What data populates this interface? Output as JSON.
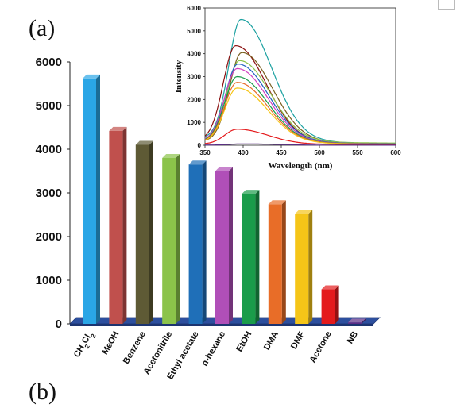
{
  "labels": {
    "panel_a": "(a)",
    "panel_b": "(b)"
  },
  "chart_data": [
    {
      "type": "bar",
      "style": "3d",
      "categories": [
        "CH2Cl2",
        "MeOH",
        "Benzene",
        "Acetonitrile",
        "Ethyl acetate",
        "n-hexane",
        "EtOH",
        "DMA",
        "DMF",
        "Acetone",
        "NB"
      ],
      "values": [
        5620,
        4420,
        4100,
        3800,
        3650,
        3500,
        2980,
        2740,
        2520,
        790,
        30
      ],
      "colors": [
        "#2aa6e6",
        "#c0504d",
        "#5e5a35",
        "#8bc34a",
        "#1f6fb8",
        "#b04fb8",
        "#1a9c4a",
        "#e86d28",
        "#f5c518",
        "#e41a1c",
        "#5b2d86"
      ],
      "floor_color": "#2d4f9e",
      "ylim": [
        0,
        6000
      ],
      "yticks": [
        0,
        1000,
        2000,
        3000,
        4000,
        5000,
        6000
      ],
      "xlabel": "",
      "ylabel": "",
      "title": "",
      "grid": false
    },
    {
      "type": "line",
      "xlabel": "Wavelength (nm)",
      "ylabel": "Intensity",
      "xlim": [
        350,
        600
      ],
      "ylim": [
        0,
        6000
      ],
      "xticks": [
        350,
        400,
        450,
        500,
        550,
        600
      ],
      "yticks": [
        0,
        1000,
        2000,
        3000,
        4000,
        5000,
        6000
      ],
      "grid": false,
      "series": [
        {
          "color": "#1aa0a0",
          "peak_x": 397,
          "peak_y": 5500,
          "values_at_xticks": [
            350,
            5300,
            1500,
            450,
            160,
            60
          ]
        },
        {
          "color": "#8b1010",
          "peak_x": 390,
          "peak_y": 4350,
          "values_at_xticks": [
            250,
            4150,
            1150,
            350,
            120,
            50
          ]
        },
        {
          "color": "#7a6020",
          "peak_x": 398,
          "peak_y": 4050,
          "values_at_xticks": [
            200,
            3950,
            1300,
            420,
            140,
            55
          ]
        },
        {
          "color": "#8bc34a",
          "peak_x": 395,
          "peak_y": 3700,
          "values_at_xticks": [
            230,
            3650,
            1800,
            650,
            220,
            90
          ]
        },
        {
          "color": "#2060c0",
          "peak_x": 393,
          "peak_y": 3550,
          "values_at_xticks": [
            220,
            3500,
            1350,
            450,
            150,
            60
          ]
        },
        {
          "color": "#d040c0",
          "peak_x": 392,
          "peak_y": 3350,
          "values_at_xticks": [
            210,
            3300,
            1250,
            420,
            140,
            55
          ]
        },
        {
          "color": "#1a9c4a",
          "peak_x": 392,
          "peak_y": 3000,
          "values_at_xticks": [
            190,
            2950,
            1150,
            380,
            130,
            50
          ]
        },
        {
          "color": "#e86d28",
          "peak_x": 392,
          "peak_y": 2750,
          "values_at_xticks": [
            170,
            2700,
            1050,
            350,
            120,
            45
          ]
        },
        {
          "color": "#f5c518",
          "peak_x": 392,
          "peak_y": 2500,
          "values_at_xticks": [
            160,
            2450,
            950,
            320,
            110,
            40
          ]
        },
        {
          "color": "#e41a1c",
          "peak_x": 392,
          "peak_y": 700,
          "values_at_xticks": [
            60,
            690,
            400,
            200,
            80,
            30
          ]
        },
        {
          "color": "#5b2d86",
          "peak_x": 400,
          "peak_y": 60,
          "values_at_xticks": [
            10,
            60,
            40,
            20,
            10,
            5
          ]
        }
      ]
    }
  ]
}
